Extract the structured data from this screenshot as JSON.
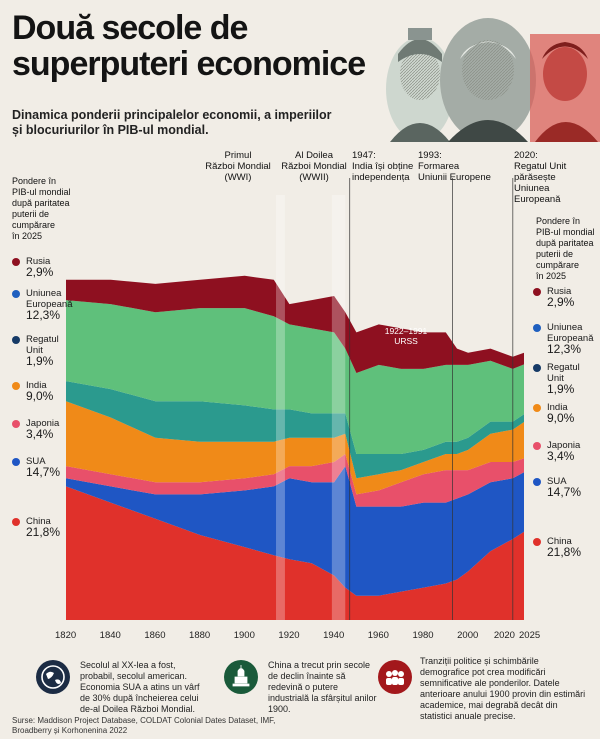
{
  "header": {
    "title_line1": "Două secole de",
    "title_line2": "superputeri economice",
    "subtitle_line1": "Dinamica ponderii principalelor economii, a imperiilor",
    "subtitle_line2": "și blocuriurilor în PIB-ul mondial."
  },
  "events": [
    {
      "l1": "Primul",
      "l2": "Război Mondial",
      "l3": "(WWI)"
    },
    {
      "l1": "Al Doilea",
      "l2": "Război Mondial",
      "l3": "(WWII)"
    },
    {
      "l1": "1947:",
      "l2": "India își obține",
      "l3": "independența"
    },
    {
      "l1": "1993:",
      "l2": "Formarea",
      "l3": "Uniunii Europene"
    },
    {
      "l1": "2020:",
      "l2": "Regatul Unit",
      "l3": "părăsește",
      "l4": "Uniunea",
      "l5": "Europeană"
    }
  ],
  "axis_heading": {
    "l1": "Pondere în",
    "l2": "PIB-ul mondial",
    "l3": "după paritatea",
    "l4": "puterii de",
    "l5": "cumpărare",
    "l6": "în 2025"
  },
  "legend": [
    {
      "name": "Rusia",
      "value": "2,9%",
      "color": "#8e1020"
    },
    {
      "name": "Uniunea Europeană",
      "value": "12,3%",
      "color": "#1f5fbf"
    },
    {
      "name": "Regatul Unit",
      "value": "1,9%",
      "color": "#163a66"
    },
    {
      "name": "India",
      "value": "9,0%",
      "color": "#f08a18"
    },
    {
      "name": "Japonia",
      "value": "3,4%",
      "color": "#e8506a"
    },
    {
      "name": "SUA",
      "value": "14,7%",
      "color": "#1f56c4"
    },
    {
      "name": "China",
      "value": "21,8%",
      "color": "#e0312b"
    }
  ],
  "ussr_label": {
    "l1": "1922–1991",
    "l2": "URSS"
  },
  "chart_data": {
    "type": "area",
    "stacked": true,
    "x": [
      1820,
      1840,
      1860,
      1880,
      1900,
      1913,
      1920,
      1930,
      1940,
      1945,
      1950,
      1960,
      1970,
      1980,
      1990,
      1995,
      2000,
      2010,
      2020,
      2025
    ],
    "series": [
      {
        "name": "China",
        "values": [
          33,
          29,
          25,
          21,
          18,
          16,
          15,
          14,
          11,
          8,
          6,
          6,
          7,
          8,
          9,
          10,
          12,
          17,
          20,
          21.8
        ]
      },
      {
        "name": "SUA",
        "values": [
          2,
          4,
          6,
          10,
          14,
          17,
          20,
          20,
          23,
          30,
          22,
          22,
          21,
          21,
          20,
          20,
          19,
          17,
          15,
          14.7
        ]
      },
      {
        "name": "Japonia",
        "values": [
          3,
          3,
          3,
          3,
          3,
          3,
          3,
          4,
          5,
          3,
          3,
          4,
          6,
          7,
          8,
          7,
          6,
          5,
          4,
          3.4
        ]
      },
      {
        "name": "India",
        "values": [
          16,
          14,
          11,
          10,
          9,
          8,
          7,
          7,
          6,
          5,
          4,
          4,
          3,
          3,
          4,
          4,
          5,
          7,
          8,
          9.0
        ]
      },
      {
        "name": "Regatul Unit",
        "values": [
          5,
          7,
          9,
          10,
          9,
          8,
          7,
          6,
          6,
          5,
          6,
          5,
          4,
          3,
          3,
          3,
          3,
          3,
          2,
          1.9
        ]
      },
      {
        "name": "Uniunea Europeană",
        "values": [
          20,
          21,
          22,
          23,
          24,
          23,
          21,
          21,
          20,
          16,
          20,
          22,
          21,
          20,
          19,
          19,
          18,
          15,
          13,
          12.3
        ]
      },
      {
        "name": "Rusia",
        "values": [
          5,
          6,
          7,
          7,
          8,
          9,
          5,
          7,
          9,
          9,
          10,
          10,
          10,
          9,
          8,
          4,
          3,
          3,
          3,
          2.9
        ]
      }
    ],
    "xlabel": "",
    "ylabel": "",
    "ticks": [
      "1820",
      "1840",
      "1860",
      "1880",
      "1900",
      "1920",
      "1940",
      "1960",
      "1980",
      "2000",
      "2020",
      "2025"
    ]
  },
  "footer": [
    {
      "icon": "globe-icon",
      "text": "Secolul al XX-lea a fost, probabil, secolul american. Economia SUA a atins un vârf de 30% după încheierea celui de-al Doilea Război Mondial."
    },
    {
      "icon": "temple-icon",
      "text": "China a trecut prin secole de declin înainte să redevină o putere industrială la sfârșitul anilor 1900."
    },
    {
      "icon": "people-icon",
      "text": "Tranziții politice și schimbările demografice pot crea modificări semnificative ale ponderilor. Datele anterioare anului 1900 provin din estimări academice, mai degrabă decât din statistici anuale precise."
    }
  ],
  "sources": "Surse: Maddison Project Database, COLDAT Colonial Dates Dataset, IMF, Broadberry și Korhonenina 2022",
  "colors": {
    "background": "#f1ede6",
    "footer_icon": "#a3181c",
    "footer_icon_alt": "#1a5a3a",
    "footer_icon_dark": "#1c2c44"
  }
}
